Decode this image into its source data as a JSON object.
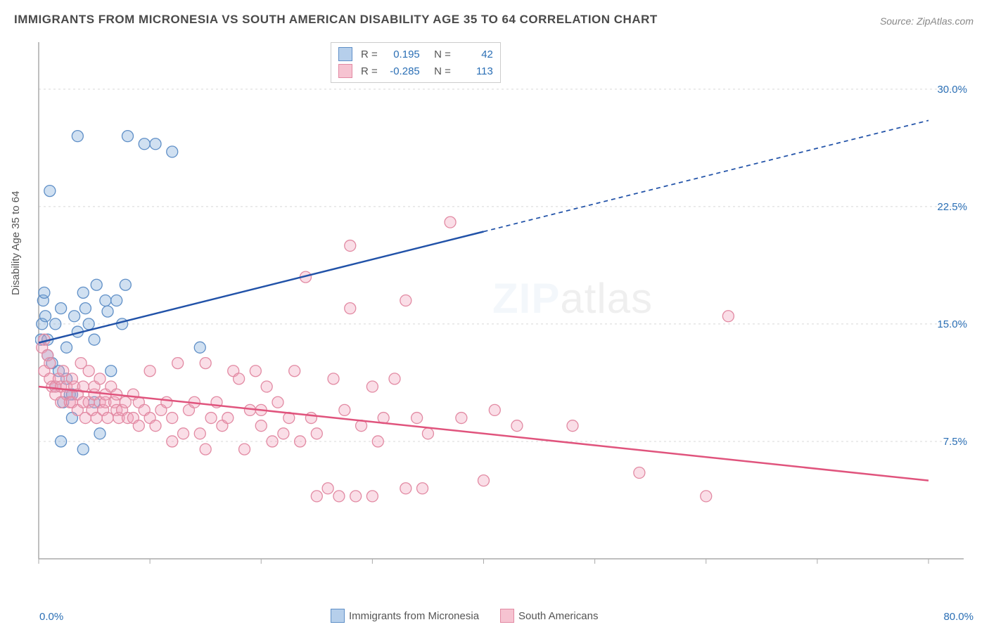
{
  "title": "IMMIGRANTS FROM MICRONESIA VS SOUTH AMERICAN DISABILITY AGE 35 TO 64 CORRELATION CHART",
  "source": "Source: ZipAtlas.com",
  "ylabel": "Disability Age 35 to 64",
  "watermark_a": "ZIP",
  "watermark_b": "atlas",
  "chart": {
    "type": "scatter",
    "plot_bg": "#ffffff",
    "grid_color": "#d8d8d8",
    "axis_color": "#aaaaaa",
    "xlim": [
      0,
      80
    ],
    "ylim": [
      0,
      33
    ],
    "xticks": [
      0,
      10,
      20,
      30,
      40,
      50,
      60,
      70,
      80
    ],
    "yticks": [
      7.5,
      15.0,
      22.5,
      30.0
    ],
    "ytick_labels": [
      "7.5%",
      "15.0%",
      "22.5%",
      "30.0%"
    ],
    "ytick_color": "#2b6fb5",
    "x_min_label": "0.0%",
    "x_max_label": "80.0%",
    "marker_radius": 8,
    "marker_stroke_width": 1.3,
    "series": [
      {
        "name": "Immigrants from Micronesia",
        "fill": "rgba(120,165,216,0.35)",
        "stroke": "#5f8fc7",
        "swatch_fill": "#b6cfeb",
        "swatch_stroke": "#5f8fc7",
        "R": "0.195",
        "N": "42",
        "trend": {
          "color": "#2152a8",
          "width": 2.5,
          "y_at_x0": 13.8,
          "y_at_x80": 28.0,
          "solid_until_x": 40
        },
        "points": [
          [
            0.2,
            14.0
          ],
          [
            0.3,
            15.0
          ],
          [
            0.4,
            16.5
          ],
          [
            0.5,
            17.0
          ],
          [
            0.6,
            15.5
          ],
          [
            0.8,
            14.0
          ],
          [
            0.8,
            13.0
          ],
          [
            1.0,
            23.5
          ],
          [
            1.2,
            12.5
          ],
          [
            1.5,
            15.0
          ],
          [
            1.5,
            11.0
          ],
          [
            1.8,
            12.0
          ],
          [
            2.0,
            16.0
          ],
          [
            2.2,
            10.0
          ],
          [
            2.5,
            13.5
          ],
          [
            2.5,
            11.5
          ],
          [
            2.8,
            10.5
          ],
          [
            3.0,
            9.0
          ],
          [
            3.0,
            10.5
          ],
          [
            3.2,
            15.5
          ],
          [
            3.5,
            14.5
          ],
          [
            3.5,
            27.0
          ],
          [
            4.0,
            17.0
          ],
          [
            4.2,
            16.0
          ],
          [
            4.5,
            15.0
          ],
          [
            5.0,
            14.0
          ],
          [
            5.0,
            10.0
          ],
          [
            5.2,
            17.5
          ],
          [
            5.5,
            8.0
          ],
          [
            6.0,
            16.5
          ],
          [
            6.2,
            15.8
          ],
          [
            6.5,
            12.0
          ],
          [
            7.0,
            16.5
          ],
          [
            7.5,
            15.0
          ],
          [
            7.8,
            17.5
          ],
          [
            8.0,
            27.0
          ],
          [
            9.5,
            26.5
          ],
          [
            10.5,
            26.5
          ],
          [
            12.0,
            26.0
          ],
          [
            14.5,
            13.5
          ],
          [
            4.0,
            7.0
          ],
          [
            2.0,
            7.5
          ]
        ]
      },
      {
        "name": "South Americans",
        "fill": "rgba(242,160,185,0.35)",
        "stroke": "#e28aa3",
        "swatch_fill": "#f6c3d1",
        "swatch_stroke": "#e28aa3",
        "R": "-0.285",
        "N": "113",
        "trend": {
          "color": "#e0547d",
          "width": 2.5,
          "y_at_x0": 11.0,
          "y_at_x80": 5.0,
          "solid_until_x": 80
        },
        "points": [
          [
            0.3,
            13.5
          ],
          [
            0.5,
            12.0
          ],
          [
            0.5,
            14.0
          ],
          [
            0.8,
            13.0
          ],
          [
            1.0,
            11.5
          ],
          [
            1.0,
            12.5
          ],
          [
            1.2,
            11.0
          ],
          [
            1.5,
            11.0
          ],
          [
            1.5,
            10.5
          ],
          [
            1.8,
            11.5
          ],
          [
            2.0,
            11.0
          ],
          [
            2.0,
            10.0
          ],
          [
            2.2,
            12.0
          ],
          [
            2.5,
            11.0
          ],
          [
            2.5,
            10.5
          ],
          [
            2.8,
            10.0
          ],
          [
            3.0,
            11.5
          ],
          [
            3.0,
            10.0
          ],
          [
            3.2,
            11.0
          ],
          [
            3.5,
            10.5
          ],
          [
            3.5,
            9.5
          ],
          [
            3.8,
            12.5
          ],
          [
            4.0,
            10.0
          ],
          [
            4.0,
            11.0
          ],
          [
            4.2,
            9.0
          ],
          [
            4.5,
            10.0
          ],
          [
            4.5,
            12.0
          ],
          [
            4.8,
            9.5
          ],
          [
            5.0,
            10.5
          ],
          [
            5.0,
            11.0
          ],
          [
            5.2,
            9.0
          ],
          [
            5.5,
            11.5
          ],
          [
            5.5,
            10.0
          ],
          [
            5.8,
            9.5
          ],
          [
            6.0,
            10.0
          ],
          [
            6.0,
            10.5
          ],
          [
            6.2,
            9.0
          ],
          [
            6.5,
            11.0
          ],
          [
            6.8,
            10.0
          ],
          [
            7.0,
            9.5
          ],
          [
            7.0,
            10.5
          ],
          [
            7.2,
            9.0
          ],
          [
            7.5,
            9.5
          ],
          [
            7.8,
            10.0
          ],
          [
            8.0,
            9.0
          ],
          [
            8.5,
            10.5
          ],
          [
            8.5,
            9.0
          ],
          [
            9.0,
            10.0
          ],
          [
            9.0,
            8.5
          ],
          [
            9.5,
            9.5
          ],
          [
            10.0,
            9.0
          ],
          [
            10.0,
            12.0
          ],
          [
            10.5,
            8.5
          ],
          [
            11.0,
            9.5
          ],
          [
            11.5,
            10.0
          ],
          [
            12.0,
            7.5
          ],
          [
            12.0,
            9.0
          ],
          [
            12.5,
            12.5
          ],
          [
            13.0,
            8.0
          ],
          [
            13.5,
            9.5
          ],
          [
            14.0,
            10.0
          ],
          [
            14.5,
            8.0
          ],
          [
            15.0,
            12.5
          ],
          [
            15.0,
            7.0
          ],
          [
            15.5,
            9.0
          ],
          [
            16.0,
            10.0
          ],
          [
            16.5,
            8.5
          ],
          [
            17.0,
            9.0
          ],
          [
            17.5,
            12.0
          ],
          [
            18.0,
            11.5
          ],
          [
            18.5,
            7.0
          ],
          [
            19.0,
            9.5
          ],
          [
            19.5,
            12.0
          ],
          [
            20.0,
            8.5
          ],
          [
            20.0,
            9.5
          ],
          [
            20.5,
            11.0
          ],
          [
            21.0,
            7.5
          ],
          [
            21.5,
            10.0
          ],
          [
            22.0,
            8.0
          ],
          [
            22.5,
            9.0
          ],
          [
            23.0,
            12.0
          ],
          [
            23.5,
            7.5
          ],
          [
            24.0,
            18.0
          ],
          [
            24.5,
            9.0
          ],
          [
            25.0,
            8.0
          ],
          [
            25.0,
            4.0
          ],
          [
            26.0,
            4.5
          ],
          [
            26.5,
            11.5
          ],
          [
            27.0,
            4.0
          ],
          [
            27.5,
            9.5
          ],
          [
            28.0,
            20.0
          ],
          [
            28.0,
            16.0
          ],
          [
            28.5,
            4.0
          ],
          [
            29.0,
            8.5
          ],
          [
            30.0,
            11.0
          ],
          [
            30.0,
            4.0
          ],
          [
            30.5,
            7.5
          ],
          [
            31.0,
            9.0
          ],
          [
            32.0,
            11.5
          ],
          [
            33.0,
            4.5
          ],
          [
            33.0,
            16.5
          ],
          [
            34.0,
            9.0
          ],
          [
            34.5,
            4.5
          ],
          [
            35.0,
            8.0
          ],
          [
            37.0,
            21.5
          ],
          [
            38.0,
            9.0
          ],
          [
            40.0,
            5.0
          ],
          [
            41.0,
            9.5
          ],
          [
            43.0,
            8.5
          ],
          [
            48.0,
            8.5
          ],
          [
            54.0,
            5.5
          ],
          [
            60.0,
            4.0
          ],
          [
            62.0,
            15.5
          ]
        ]
      }
    ]
  },
  "bottom_legend": [
    {
      "label": "Immigrants from Micronesia",
      "fill": "#b6cfeb",
      "stroke": "#5f8fc7"
    },
    {
      "label": "South Americans",
      "fill": "#f6c3d1",
      "stroke": "#e28aa3"
    }
  ]
}
